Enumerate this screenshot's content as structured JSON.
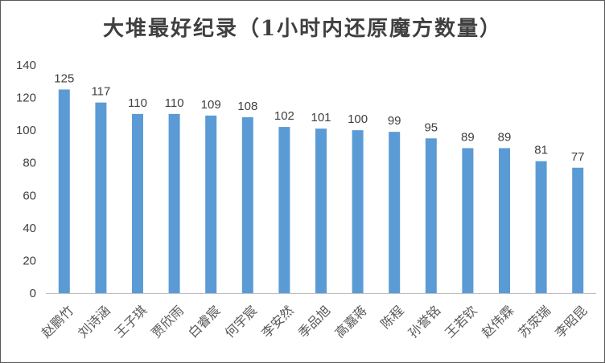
{
  "chart_data": {
    "type": "bar",
    "title": "大堆最好纪录（1小时内还原魔方数量）",
    "xlabel": "",
    "ylabel": "",
    "categories": [
      "赵鹏竹",
      "刘诗涵",
      "王子琪",
      "贾欣雨",
      "白睿宸",
      "何宇宸",
      "李安然",
      "季品旭",
      "高嘉蒋",
      "陈程",
      "孙誉铭",
      "王若钦",
      "赵伟霖",
      "苏荥瑞",
      "李昭昆"
    ],
    "values": [
      125,
      117,
      110,
      110,
      109,
      108,
      102,
      101,
      100,
      99,
      95,
      89,
      89,
      81,
      77
    ],
    "yticks": [
      0,
      20,
      40,
      60,
      80,
      100,
      120,
      140
    ],
    "ylim": [
      0,
      140
    ],
    "grid": false,
    "legend": "none",
    "bar_color": "#5B9BD5"
  }
}
